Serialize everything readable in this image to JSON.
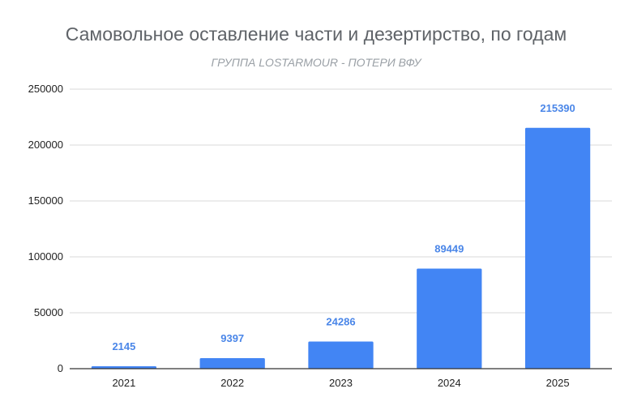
{
  "chart_data": {
    "type": "bar",
    "title": "Самовольное оставление части и дезертирство, по годам",
    "subtitle": "ГРУППА LOSTARMOUR - ПОТЕРИ ВФУ",
    "categories": [
      "2021",
      "2022",
      "2023",
      "2024",
      "2025"
    ],
    "values": [
      2145,
      9397,
      24286,
      89449,
      215390
    ],
    "data_labels": [
      "2145",
      "9397",
      "24286",
      "89449",
      "215390"
    ],
    "xlabel": "",
    "ylabel": "",
    "ylim": [
      0,
      250000
    ],
    "yticks": [
      0,
      50000,
      100000,
      150000,
      200000,
      250000
    ],
    "ytick_labels": [
      "0",
      "50000",
      "100000",
      "150000",
      "200000",
      "250000"
    ],
    "grid": true,
    "legend": "none",
    "bar_color": "#4285f4",
    "label_color": "#4a86e8"
  }
}
